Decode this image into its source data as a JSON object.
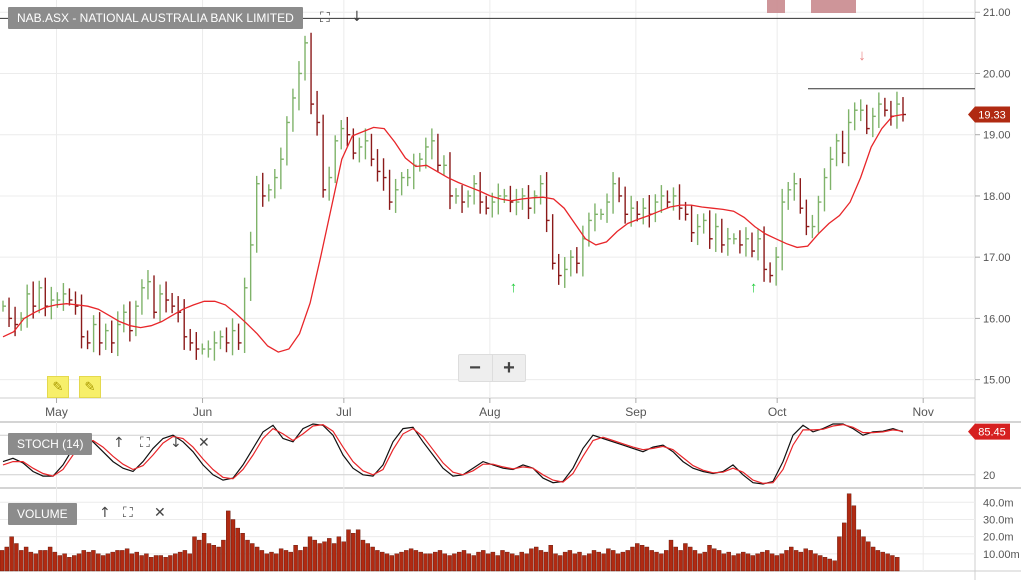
{
  "symbol_title": "NAB.ASX - NATIONAL AUSTRALIA BANK LIMITED",
  "price_tag": "19.33",
  "stoch_label": "STOCH (14)",
  "stoch_tag": "85.45",
  "volume_label": "VOLUME",
  "tool_icons": [
    "fullscreen-icon",
    "arrow-down-icon",
    "close-icon"
  ],
  "colors": {
    "ma_line": "#e8262a",
    "up_bar": "#7fb36a",
    "down_bar": "#8b1a1a",
    "volume_bar": "#b02a12",
    "stoch_k": "#111111",
    "stoch_d": "#e8262a",
    "signal_up": "#1fcc3a",
    "signal_down": "#e98080"
  },
  "chart_data": [
    {
      "type": "ohlc",
      "panel": "price",
      "ylim": [
        14.7,
        21.2
      ],
      "yticks": [
        "21.00",
        "20.00",
        "19.00",
        "18.00",
        "17.00",
        "16.00",
        "15.00"
      ],
      "xtick_labels": [
        "May",
        "Jun",
        "Jul",
        "Aug",
        "Sep",
        "Oct",
        "Nov"
      ],
      "x_range": [
        "2016-04-19",
        "2016-11-12"
      ],
      "month_starts": [
        "2016-05-01",
        "2016-06-01",
        "2016-07-01",
        "2016-08-01",
        "2016-09-01",
        "2016-10-01",
        "2016-11-01"
      ],
      "last_price": 19.33,
      "horizontal_lines": [
        20.9,
        19.75
      ],
      "series": [
        {
          "name": "price",
          "values": [
            16.2,
            16.0,
            15.9,
            16.0,
            16.4,
            16.2,
            16.5,
            16.2,
            16.3,
            16.3,
            16.4,
            16.3,
            16.2,
            15.7,
            15.6,
            15.9,
            15.6,
            15.8,
            15.6,
            15.9,
            16.1,
            15.8,
            16.2,
            16.5,
            16.6,
            16.1,
            16.4,
            16.3,
            16.2,
            16.1,
            15.7,
            15.6,
            15.5,
            15.5,
            15.5,
            15.6,
            15.7,
            15.6,
            15.8,
            15.6,
            16.5,
            17.2,
            18.2,
            18.0,
            18.1,
            18.3,
            18.6,
            19.2,
            19.6,
            20.0,
            20.5,
            19.5,
            19.2,
            18.1,
            18.3,
            18.9,
            19.1,
            19.0,
            18.7,
            18.8,
            18.9,
            18.6,
            18.4,
            18.3,
            17.9,
            18.1,
            18.3,
            18.3,
            18.5,
            18.6,
            18.8,
            18.9,
            18.5,
            18.5,
            18.0,
            18.0,
            17.9,
            18.0,
            18.2,
            17.9,
            17.8,
            17.9,
            18.0,
            18.0,
            17.9,
            17.9,
            18.0,
            17.8,
            18.0,
            18.2,
            17.6,
            16.9,
            16.7,
            16.8,
            17.0,
            16.9,
            17.3,
            17.6,
            17.7,
            17.7,
            17.9,
            18.2,
            18.0,
            17.7,
            17.8,
            17.7,
            17.8,
            17.7,
            17.9,
            18.0,
            17.9,
            18.0,
            17.8,
            17.7,
            17.4,
            17.5,
            17.6,
            17.3,
            17.5,
            17.2,
            17.3,
            17.3,
            17.2,
            17.3,
            17.1,
            17.3,
            16.8,
            16.7,
            17.0,
            17.9,
            18.1,
            18.2,
            17.8,
            17.5,
            17.5,
            17.9,
            18.3,
            18.6,
            18.9,
            18.7,
            19.2,
            19.4,
            19.4,
            19.1,
            19.3,
            19.5,
            19.4,
            19.3,
            19.5,
            19.33
          ]
        },
        {
          "name": "moving-average",
          "values": [
            15.7,
            15.78,
            16.0,
            16.1,
            16.18,
            16.22,
            16.24,
            16.22,
            16.2,
            16.15,
            16.05,
            15.95,
            15.88,
            15.85,
            15.88,
            15.95,
            16.05,
            16.15,
            16.22,
            16.28,
            16.28,
            16.22,
            16.08,
            15.92,
            15.75,
            15.55,
            15.45,
            15.5,
            15.75,
            16.25,
            17.0,
            17.8,
            18.6,
            18.98,
            19.05,
            19.12,
            19.1,
            18.88,
            18.62,
            18.48,
            18.5,
            18.4,
            18.3,
            18.22,
            18.15,
            18.08,
            18.0,
            17.95,
            17.92,
            17.95,
            17.97,
            17.98,
            17.95,
            17.8,
            17.55,
            17.3,
            17.2,
            17.25,
            17.42,
            17.55,
            17.62,
            17.68,
            17.75,
            17.82,
            17.85,
            17.85,
            17.82,
            17.8,
            17.78,
            17.75,
            17.65,
            17.5,
            17.38,
            17.3,
            17.22,
            17.16,
            17.18,
            17.38,
            17.55,
            17.68,
            17.9,
            18.3,
            18.8,
            19.1,
            19.3,
            19.33
          ]
        }
      ],
      "signals": [
        {
          "direction": "up",
          "date": "2016-08-06"
        },
        {
          "direction": "up",
          "date": "2016-09-26"
        },
        {
          "direction": "down",
          "date": "2016-10-19"
        }
      ],
      "event_markers": [
        "2016-10-07",
        "2016-10-16",
        "2016-10-17",
        "2016-10-18",
        "2016-10-19",
        "2016-10-21"
      ]
    },
    {
      "type": "line",
      "panel": "stochastic",
      "ylim": [
        0,
        100
      ],
      "yticks": [
        "20"
      ],
      "reference_levels": [
        80,
        20
      ],
      "last_value": 85.45,
      "series": [
        {
          "name": "%K",
          "values": [
            40,
            45,
            38,
            25,
            18,
            18,
            35,
            60,
            75,
            70,
            55,
            40,
            30,
            25,
            40,
            60,
            75,
            80,
            70,
            55,
            35,
            20,
            12,
            15,
            35,
            60,
            85,
            95,
            75,
            70,
            90,
            97,
            95,
            80,
            50,
            30,
            20,
            18,
            35,
            70,
            90,
            92,
            70,
            50,
            30,
            18,
            20,
            30,
            40,
            35,
            30,
            28,
            35,
            30,
            15,
            8,
            10,
            30,
            60,
            80,
            75,
            70,
            65,
            60,
            55,
            62,
            65,
            55,
            40,
            30,
            25,
            22,
            25,
            35,
            20,
            8,
            6,
            10,
            40,
            80,
            95,
            85,
            90,
            97,
            97,
            90,
            80,
            85,
            86,
            90,
            85
          ]
        },
        {
          "name": "%D",
          "values": [
            35,
            40,
            40,
            30,
            22,
            18,
            28,
            50,
            68,
            72,
            62,
            48,
            36,
            28,
            34,
            50,
            68,
            78,
            75,
            62,
            44,
            28,
            16,
            14,
            28,
            50,
            75,
            90,
            82,
            72,
            82,
            94,
            96,
            86,
            62,
            40,
            26,
            20,
            28,
            58,
            82,
            90,
            78,
            58,
            38,
            24,
            20,
            26,
            36,
            36,
            32,
            29,
            32,
            30,
            20,
            12,
            9,
            22,
            48,
            72,
            77,
            72,
            67,
            62,
            58,
            60,
            63,
            58,
            46,
            34,
            27,
            23,
            24,
            30,
            24,
            12,
            7,
            8,
            28,
            65,
            88,
            88,
            89,
            94,
            96,
            92,
            84,
            84,
            85,
            88,
            86
          ]
        }
      ]
    },
    {
      "type": "bar",
      "panel": "volume",
      "ylim": [
        0,
        46
      ],
      "yticks": [
        "40.0m",
        "30.0m",
        "20.0m",
        "10.00m"
      ],
      "series": [
        {
          "name": "volume",
          "values": [
            12,
            14,
            20,
            16,
            12,
            14,
            11,
            10,
            12,
            12,
            14,
            11,
            9,
            10,
            8,
            9,
            10,
            12,
            11,
            12,
            10,
            9,
            10,
            11,
            12,
            12,
            13,
            10,
            11,
            9,
            10,
            8,
            9,
            9,
            8,
            9,
            10,
            11,
            12,
            10,
            20,
            18,
            22,
            16,
            15,
            14,
            18,
            35,
            30,
            25,
            22,
            18,
            16,
            14,
            12,
            10,
            11,
            10,
            13,
            12,
            11,
            15,
            12,
            14,
            20,
            18,
            16,
            17,
            19,
            16,
            20,
            17,
            24,
            22,
            24,
            18,
            16,
            14,
            12,
            11,
            10,
            9,
            10,
            11,
            12,
            13,
            12,
            11,
            10,
            10,
            11,
            12,
            10,
            9,
            10,
            11,
            12,
            10,
            9,
            11,
            12,
            10,
            11,
            9,
            12,
            11,
            10,
            9,
            11,
            10,
            13,
            14,
            12,
            11,
            15,
            10,
            9,
            11,
            12,
            10,
            11,
            9,
            10,
            12,
            11,
            10,
            13,
            12,
            10,
            11,
            12,
            14,
            16,
            15,
            14,
            12,
            11,
            10,
            12,
            18,
            14,
            12,
            16,
            14,
            12,
            10,
            11,
            15,
            13,
            12,
            10,
            11,
            9,
            10,
            11,
            10,
            9,
            10,
            11,
            12,
            10,
            9,
            10,
            12,
            14,
            12,
            11,
            13,
            12,
            10,
            9,
            8,
            7,
            6,
            20,
            28,
            45,
            38,
            24,
            20,
            17,
            14,
            12,
            11,
            10,
            9,
            8
          ]
        }
      ]
    }
  ]
}
